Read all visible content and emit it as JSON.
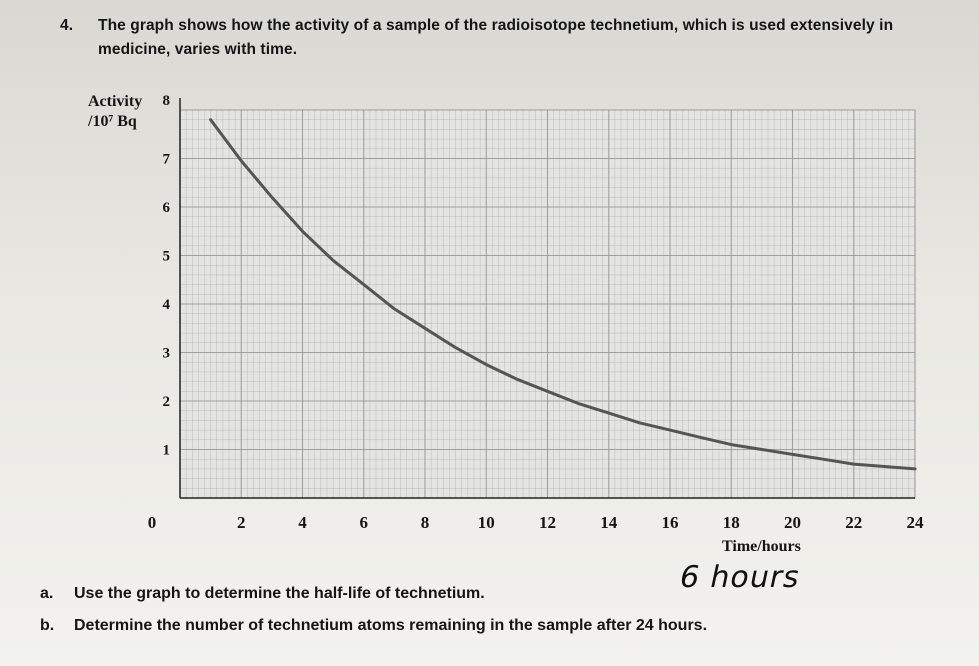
{
  "question": {
    "number": "4.",
    "stem": "The graph shows how the activity of a sample of the radioisotope technetium, which is used extensively in medicine, varies with time."
  },
  "chart_data": {
    "type": "line",
    "title": "",
    "ylabel_line1": "Activity",
    "ylabel_line2": "/10⁷ Bq",
    "xlabel": "Time/hours",
    "xlim": [
      0,
      24
    ],
    "ylim": [
      0,
      8
    ],
    "x_ticks": [
      "0",
      "2",
      "4",
      "6",
      "8",
      "10",
      "12",
      "14",
      "16",
      "18",
      "20",
      "22",
      "24"
    ],
    "y_ticks": [
      "1",
      "2",
      "3",
      "4",
      "5",
      "6",
      "7",
      "8"
    ],
    "grid": true,
    "series": [
      {
        "x": [
          1,
          2,
          3,
          4,
          5,
          6,
          7,
          8,
          9,
          10,
          11,
          12,
          13,
          14,
          15,
          16,
          17,
          18,
          19,
          20,
          21,
          22,
          23,
          24
        ],
        "y": [
          7.8,
          6.95,
          6.2,
          5.5,
          4.9,
          4.4,
          3.9,
          3.5,
          3.1,
          2.75,
          2.45,
          2.2,
          1.95,
          1.75,
          1.55,
          1.4,
          1.25,
          1.1,
          1.0,
          0.9,
          0.8,
          0.7,
          0.65,
          0.6
        ]
      }
    ],
    "colors": {
      "grid": "#9a9a9a",
      "curve": "#555555",
      "plot_bg": "#e4e4e0"
    }
  },
  "parts": {
    "a_label": "a.",
    "a_text": "Use the graph to determine the half-life of technetium.",
    "a_answer": "6 hours",
    "b_label": "b.",
    "b_text": "Determine the number of technetium atoms remaining in the sample after 24 hours."
  }
}
